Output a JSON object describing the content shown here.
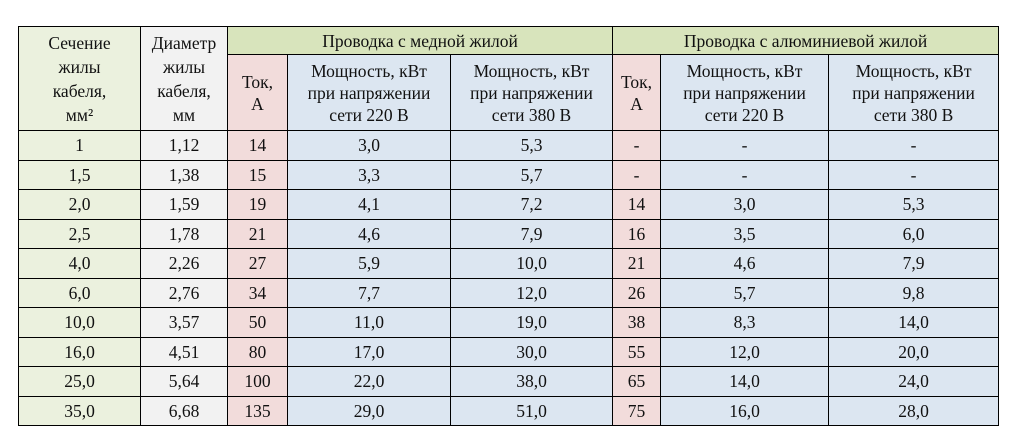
{
  "table": {
    "header": {
      "section": [
        "Сечение",
        "жилы",
        "кабеля,",
        "мм²"
      ],
      "diameter": [
        "Диаметр",
        "жилы",
        "кабеля,",
        "мм"
      ],
      "group_copper": "Проводка с медной жилой",
      "group_aluminum": "Проводка с алюминиевой жилой",
      "sub": [
        [
          "Ток,",
          "А"
        ],
        [
          "Мощность, кВт",
          "при напряжении",
          "сети 220 В"
        ],
        [
          "Мощность, кВт",
          "при напряжении",
          "сети 380 В"
        ],
        [
          "Ток,",
          "А"
        ],
        [
          "Мощность, кВт",
          "при напряжении",
          "сети 220 В"
        ],
        [
          "Мощность, кВт",
          "при напряжении",
          "сети 380 В"
        ]
      ]
    },
    "rows": [
      [
        "1",
        "1,12",
        "14",
        "3,0",
        "5,3",
        "-",
        "-",
        "-"
      ],
      [
        "1,5",
        "1,38",
        "15",
        "3,3",
        "5,7",
        "-",
        "-",
        "-"
      ],
      [
        "2,0",
        "1,59",
        "19",
        "4,1",
        "7,2",
        "14",
        "3,0",
        "5,3"
      ],
      [
        "2,5",
        "1,78",
        "21",
        "4,6",
        "7,9",
        "16",
        "3,5",
        "6,0"
      ],
      [
        "4,0",
        "2,26",
        "27",
        "5,9",
        "10,0",
        "21",
        "4,6",
        "7,9"
      ],
      [
        "6,0",
        "2,76",
        "34",
        "7,7",
        "12,0",
        "26",
        "5,7",
        "9,8"
      ],
      [
        "10,0",
        "3,57",
        "50",
        "11,0",
        "19,0",
        "38",
        "8,3",
        "14,0"
      ],
      [
        "16,0",
        "4,51",
        "80",
        "17,0",
        "30,0",
        "55",
        "12,0",
        "20,0"
      ],
      [
        "25,0",
        "5,64",
        "100",
        "22,0",
        "38,0",
        "65",
        "14,0",
        "24,0"
      ],
      [
        "35,0",
        "6,68",
        "135",
        "29,0",
        "51,0",
        "75",
        "16,0",
        "28,0"
      ]
    ]
  }
}
